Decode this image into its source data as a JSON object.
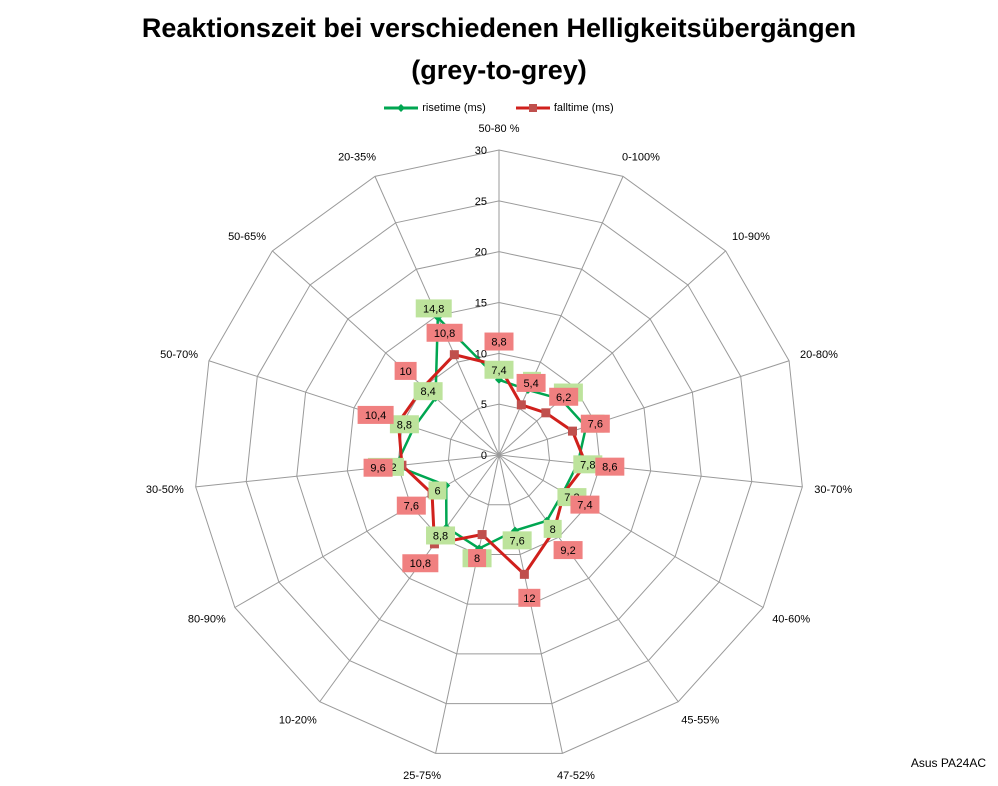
{
  "chart_data": {
    "type": "radar",
    "title_line1": "Reaktionszeit bei verschiedenen Helligkeitsübergängen",
    "title_line2": "(grey-to-grey)",
    "categories": [
      "50-80 %",
      "0-100%",
      "10-90%",
      "20-80%",
      "30-70%",
      "40-60%",
      "45-55%",
      "47-52%",
      "25-75%",
      "10-20%",
      "80-90%",
      "30-50%",
      "50-70%",
      "50-65%",
      "20-35%"
    ],
    "rlim": [
      0,
      30
    ],
    "rticks": [
      0,
      5,
      10,
      15,
      20,
      25,
      30
    ],
    "series": [
      {
        "name": "risetime (ms)",
        "color": "#00a651",
        "label_bg": "#bde39c",
        "values": [
          7.4,
          7,
          8.2,
          9,
          7.8,
          7.3,
          8,
          7.6,
          9.4,
          8.8,
          6,
          10.2,
          8.8,
          8.4,
          14.8
        ]
      },
      {
        "name": "falltime (ms)",
        "color": "#d0201c",
        "label_bg": "#f08080",
        "values": [
          8.8,
          5.4,
          6.2,
          7.6,
          8.6,
          7.4,
          9.2,
          12,
          8,
          10.8,
          7.6,
          9.6,
          10.4,
          10,
          10.8
        ]
      }
    ],
    "value_labels": {
      "risetime": [
        "7,4",
        "7",
        "8,2",
        "9",
        "7,8",
        "7,3",
        "8",
        "7,6",
        "9,4",
        "8,8",
        "6",
        "10,2",
        "8,8",
        "8,4",
        "14,8"
      ],
      "falltime": [
        "8,8",
        "5,4",
        "6,2",
        "7,6",
        "8,6",
        "7,4",
        "9,2",
        "12",
        "8",
        "10,8",
        "7,6",
        "9,6",
        "10,4",
        "10",
        "10,8"
      ]
    },
    "grid": true,
    "legend_position": "top"
  },
  "footer": "Asus PA24AC"
}
